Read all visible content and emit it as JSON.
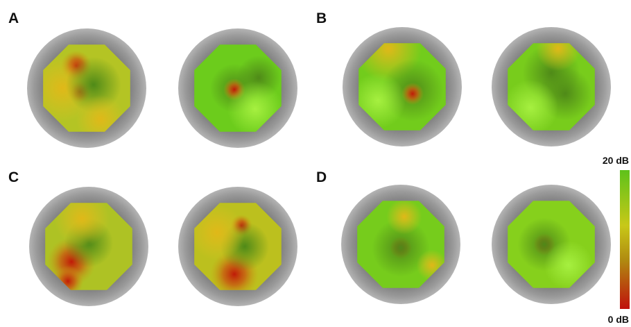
{
  "panels": [
    {
      "label": "A"
    },
    {
      "label": "B"
    },
    {
      "label": "C"
    },
    {
      "label": "D"
    }
  ],
  "colorbar": {
    "max_label": "20 dB",
    "min_label": "0 dB"
  }
}
